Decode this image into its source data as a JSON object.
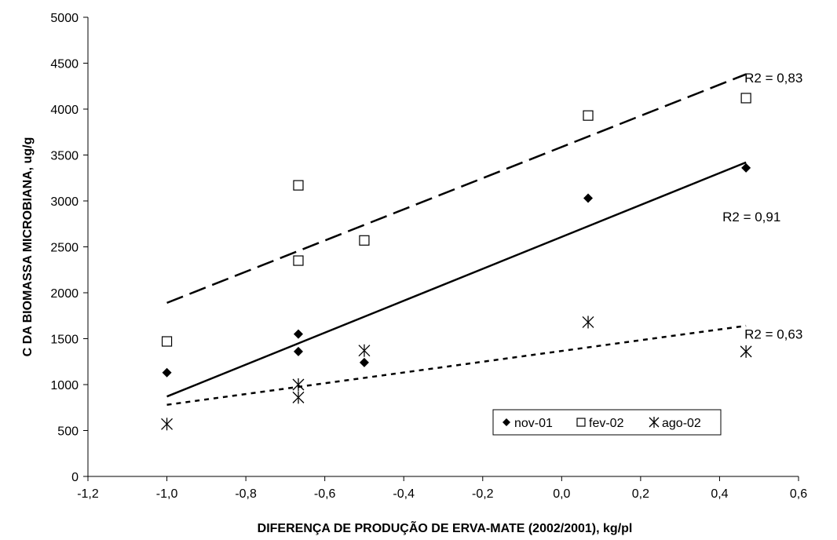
{
  "chart_data": {
    "type": "scatter",
    "xlabel": "DIFERENÇA DE PRODUÇÃO DE ERVA-MATE (2002/2001), kg/pl",
    "ylabel": "C DA BIOMASSA MICROBIANA, ug/g",
    "xlim": [
      -1.2,
      0.6
    ],
    "ylim": [
      0,
      5000
    ],
    "x_ticks": [
      "-1,2",
      "-1,0",
      "-0,8",
      "-0,6",
      "-0,4",
      "-0,2",
      "0,0",
      "0,2",
      "0,4",
      "0,6"
    ],
    "y_ticks": [
      "0",
      "500",
      "1000",
      "1500",
      "2000",
      "2500",
      "3000",
      "3500",
      "4000",
      "4500",
      "5000"
    ],
    "grid": false,
    "legend_position": "bottom-right",
    "series": [
      {
        "name": "nov-01",
        "marker": "filled-diamond",
        "color": "#000000",
        "points": [
          [
            -1.0,
            1130
          ],
          [
            -0.667,
            1550
          ],
          [
            -0.667,
            1360
          ],
          [
            -0.5,
            1240
          ],
          [
            0.067,
            3030
          ],
          [
            0.467,
            3360
          ]
        ],
        "trendline": {
          "style": "solid",
          "x": [
            -1.0,
            0.467
          ],
          "y": [
            870,
            3420
          ],
          "r2_label": "R2 = 0,91"
        }
      },
      {
        "name": "fev-02",
        "marker": "open-square",
        "color": "#000000",
        "points": [
          [
            -1.0,
            1470
          ],
          [
            -0.667,
            3170
          ],
          [
            -0.667,
            2350
          ],
          [
            -0.5,
            2570
          ],
          [
            0.067,
            3930
          ],
          [
            0.467,
            4120
          ]
        ],
        "trendline": {
          "style": "dashed",
          "x": [
            -1.0,
            0.467
          ],
          "y": [
            1890,
            4380
          ],
          "r2_label": "R2 = 0,83"
        }
      },
      {
        "name": "ago-02",
        "marker": "asterisk",
        "color": "#000000",
        "points": [
          [
            -1.0,
            570
          ],
          [
            -0.667,
            1000
          ],
          [
            -0.667,
            860
          ],
          [
            -0.5,
            1370
          ],
          [
            0.067,
            1680
          ],
          [
            0.467,
            1360
          ]
        ],
        "trendline": {
          "style": "dotted",
          "x": [
            -1.0,
            0.467
          ],
          "y": [
            780,
            1640
          ],
          "r2_label": "R2 = 0,63"
        }
      }
    ]
  }
}
